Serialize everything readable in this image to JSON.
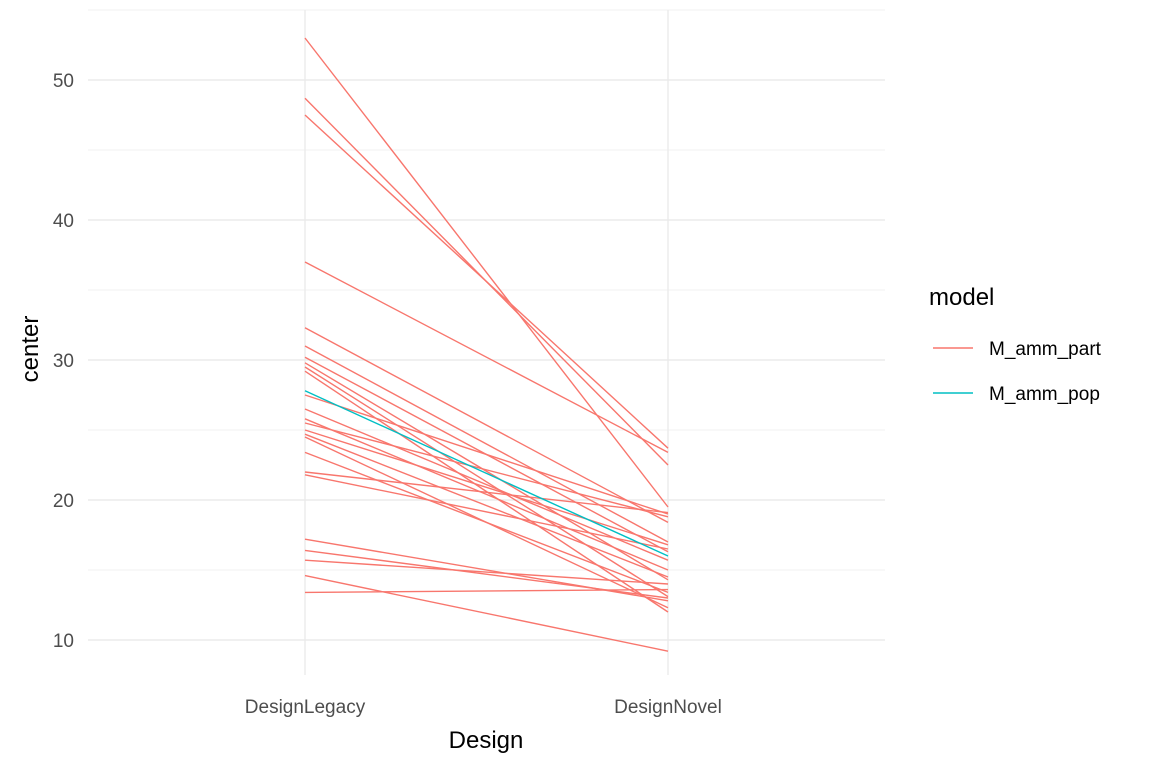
{
  "chart_data": {
    "type": "line",
    "title": "",
    "xlabel": "Design",
    "ylabel": "center",
    "categories": [
      "DesignLegacy",
      "DesignNovel"
    ],
    "ylim": [
      7.5,
      55
    ],
    "y_ticks": [
      10,
      20,
      30,
      40,
      50
    ],
    "grid": true,
    "legend": {
      "title": "model",
      "placement": "right",
      "entries": [
        {
          "label": "M_amm_part",
          "color": "#F8766D"
        },
        {
          "label": "M_amm_pop",
          "color": "#00BFC4"
        }
      ]
    },
    "series": [
      {
        "name": "M_amm_part",
        "color": "#F8766D",
        "lines": [
          [
            53.0,
            19.5
          ],
          [
            48.7,
            22.5
          ],
          [
            47.5,
            23.7
          ],
          [
            37.0,
            23.4
          ],
          [
            32.3,
            18.4
          ],
          [
            31.0,
            17.0
          ],
          [
            30.2,
            16.3
          ],
          [
            29.8,
            14.3
          ],
          [
            29.5,
            13.1
          ],
          [
            29.2,
            12.0
          ],
          [
            27.5,
            19.0
          ],
          [
            26.5,
            15.7
          ],
          [
            25.8,
            15.0
          ],
          [
            25.5,
            18.8
          ],
          [
            25.0,
            16.8
          ],
          [
            24.7,
            14.5
          ],
          [
            24.5,
            12.3
          ],
          [
            23.4,
            13.4
          ],
          [
            22.0,
            19.1
          ],
          [
            21.8,
            16.5
          ],
          [
            17.2,
            12.8
          ],
          [
            16.4,
            13.0
          ],
          [
            15.7,
            14.0
          ],
          [
            14.6,
            9.2
          ],
          [
            13.4,
            13.6
          ]
        ]
      },
      {
        "name": "M_amm_pop",
        "color": "#00BFC4",
        "lines": [
          [
            27.8,
            16.0
          ]
        ]
      }
    ]
  }
}
